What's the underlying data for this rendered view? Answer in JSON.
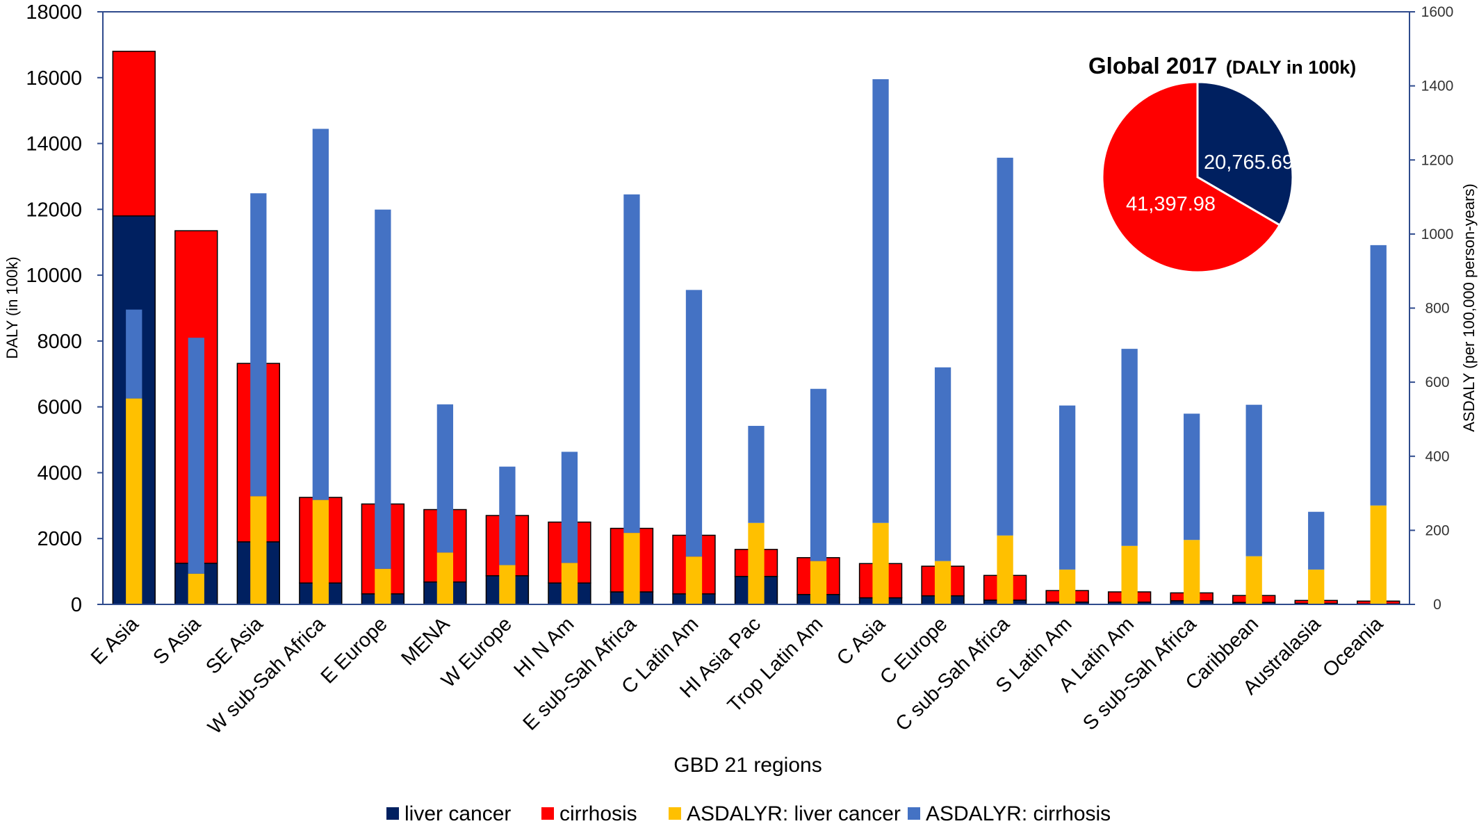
{
  "chart_data": [
    {
      "type": "bar",
      "xlabel": "GBD 21 regions",
      "ylabel": "DALY (in 100k)",
      "y2label": "ASDALY (per 100,000 person-years)",
      "ylim": [
        0,
        18000
      ],
      "y2lim": [
        0,
        1600
      ],
      "yticks": [
        0,
        2000,
        4000,
        6000,
        8000,
        10000,
        12000,
        14000,
        16000,
        18000
      ],
      "y2ticks": [
        0,
        200,
        400,
        600,
        800,
        1000,
        1200,
        1400,
        1600
      ],
      "categories": [
        "E Asia",
        "S Asia",
        "SE Asia",
        "W sub-Sah Africa",
        "E Europe",
        "MENA",
        "W Europe",
        "HI N Am",
        "E sub-Sah Africa",
        "C Latin Am",
        "HI Asia Pac",
        "Trop Latin Am",
        "C Asia",
        "C  Europe",
        "C sub-Sah Africa",
        "S  Latin Am",
        "A Latin Am",
        "S sub-Sah Africa",
        "Caribbean",
        "Australasia",
        "Oceania"
      ],
      "stacked_series": [
        {
          "name": "liver cancer",
          "color": "#002060",
          "axis": "left",
          "values": [
            11800,
            1250,
            1900,
            650,
            320,
            680,
            870,
            650,
            380,
            320,
            850,
            300,
            200,
            260,
            130,
            70,
            70,
            110,
            60,
            30,
            15
          ]
        },
        {
          "name": "cirrhosis",
          "color": "#ff0000",
          "axis": "left",
          "values": [
            5000,
            10100,
            5420,
            2600,
            2730,
            2200,
            1830,
            1850,
            1930,
            1780,
            820,
            1120,
            1040,
            900,
            750,
            350,
            310,
            240,
            210,
            90,
            85
          ]
        }
      ],
      "overlay_series": [
        {
          "name": "ASDALYR: liver cancer",
          "color": "#ffc000",
          "axis": "right",
          "values": [
            556,
            83,
            292,
            282,
            96,
            140,
            106,
            112,
            193,
            129,
            220,
            117,
            220,
            117,
            186,
            94,
            158,
            174,
            130,
            94,
            267
          ]
        },
        {
          "name": "ASDALYR: cirrhosis",
          "color": "#4472c4",
          "axis": "right",
          "values": [
            240,
            637,
            818,
            1002,
            970,
            400,
            266,
            300,
            914,
            720,
            262,
            465,
            1198,
            523,
            1020,
            443,
            532,
            341,
            409,
            156,
            703
          ]
        }
      ],
      "legend_position": "bottom"
    },
    {
      "type": "pie",
      "title": "Global 2017",
      "title_suffix": "(DALY in 100k)",
      "slices": [
        {
          "label": "20,765.69",
          "value": 20765.69,
          "color": "#002060"
        },
        {
          "label": "41,397.98",
          "value": 41397.98,
          "color": "#ff0000"
        }
      ]
    }
  ]
}
